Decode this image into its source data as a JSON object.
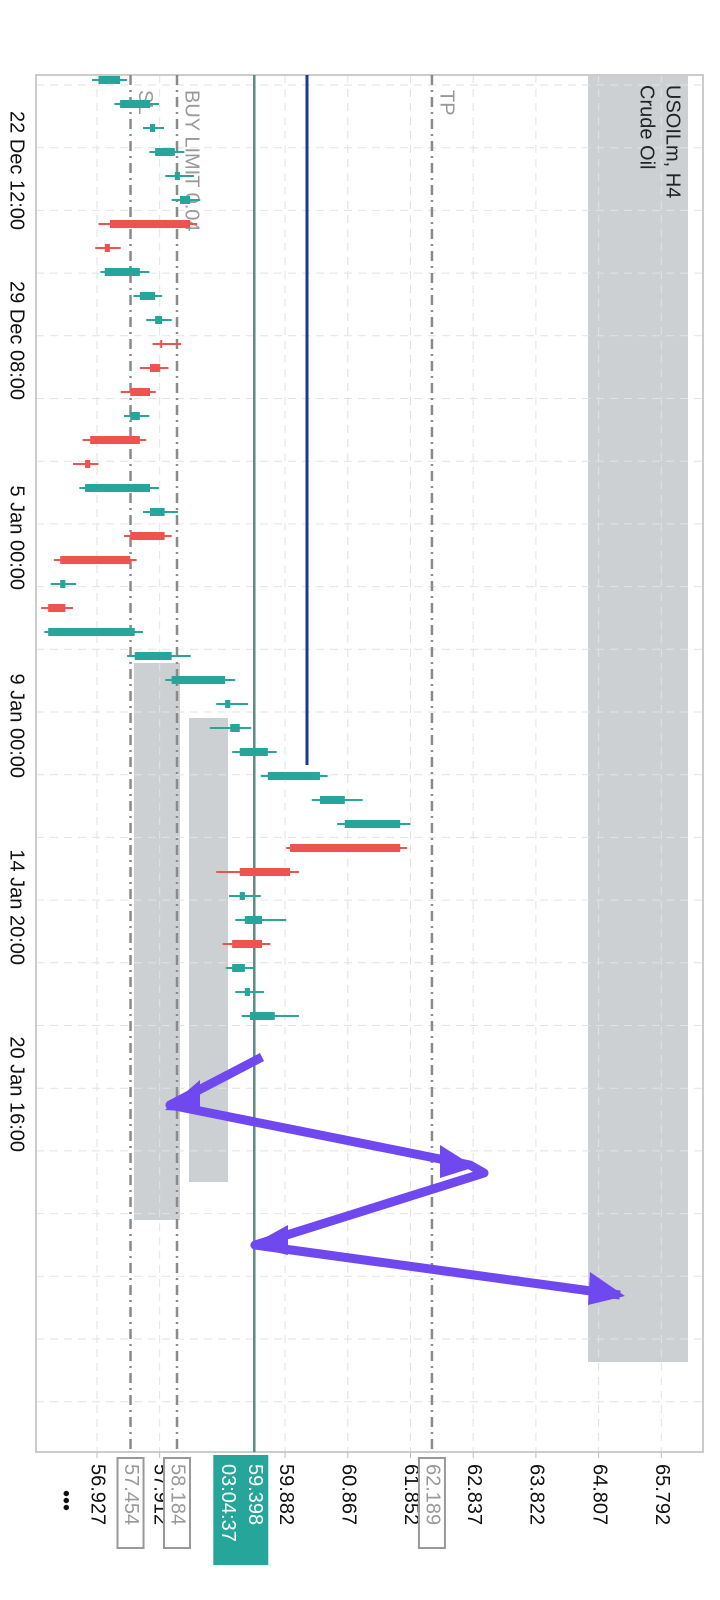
{
  "symbol": "USOILm, H4",
  "description": "Crude Oil",
  "chart_data": {
    "type": "candlestick",
    "up_color": "#26a69a",
    "down_color": "#ef5350",
    "grid": true,
    "xlim": [
      55.969,
      66.447
    ],
    "xticks": [
      56.927,
      57.912,
      59.882,
      60.867,
      61.852,
      62.837,
      63.822,
      64.807,
      65.792
    ],
    "time_labels": [
      "22 Dec 12:00",
      "29 Dec 08:00",
      "5 Jan 00:00",
      "9 Jan 00:00",
      "14 Jan 20:00",
      "20 Jan 16:00"
    ],
    "candles": [
      {
        "o": 56.95,
        "h": 57.4,
        "l": 56.85,
        "c": 57.29
      },
      {
        "o": 57.29,
        "h": 57.9,
        "l": 57.2,
        "c": 57.76
      },
      {
        "o": 57.76,
        "h": 57.98,
        "l": 57.65,
        "c": 57.84
      },
      {
        "o": 57.84,
        "h": 58.3,
        "l": 57.75,
        "c": 58.15
      },
      {
        "o": 58.15,
        "h": 58.45,
        "l": 58.0,
        "c": 58.23
      },
      {
        "o": 58.23,
        "h": 58.55,
        "l": 58.1,
        "c": 58.39
      },
      {
        "o": 58.39,
        "h": 58.5,
        "l": 56.95,
        "c": 57.13
      },
      {
        "o": 57.13,
        "h": 57.3,
        "l": 56.9,
        "c": 57.05
      },
      {
        "o": 57.05,
        "h": 57.75,
        "l": 56.98,
        "c": 57.6
      },
      {
        "o": 57.6,
        "h": 57.95,
        "l": 57.5,
        "c": 57.84
      },
      {
        "o": 57.84,
        "h": 58.1,
        "l": 57.7,
        "c": 57.95
      },
      {
        "o": 57.95,
        "h": 58.25,
        "l": 57.8,
        "c": 57.92
      },
      {
        "o": 57.92,
        "h": 58.05,
        "l": 57.6,
        "c": 57.76
      },
      {
        "o": 57.76,
        "h": 57.85,
        "l": 57.3,
        "c": 57.45
      },
      {
        "o": 57.45,
        "h": 57.75,
        "l": 57.35,
        "c": 57.6
      },
      {
        "o": 57.6,
        "h": 57.7,
        "l": 56.7,
        "c": 56.82
      },
      {
        "o": 56.82,
        "h": 56.95,
        "l": 56.55,
        "c": 56.74
      },
      {
        "o": 56.74,
        "h": 57.9,
        "l": 56.65,
        "c": 57.76
      },
      {
        "o": 57.76,
        "h": 58.2,
        "l": 57.65,
        "c": 57.99
      },
      {
        "o": 57.99,
        "h": 58.1,
        "l": 57.35,
        "c": 57.45
      },
      {
        "o": 57.45,
        "h": 57.55,
        "l": 56.25,
        "c": 56.35
      },
      {
        "o": 56.35,
        "h": 56.6,
        "l": 56.2,
        "c": 56.43
      },
      {
        "o": 56.43,
        "h": 56.55,
        "l": 56.05,
        "c": 56.16
      },
      {
        "o": 56.16,
        "h": 57.65,
        "l": 56.1,
        "c": 57.52
      },
      {
        "o": 57.52,
        "h": 58.4,
        "l": 57.4,
        "c": 58.1
      },
      {
        "o": 58.1,
        "h": 59.1,
        "l": 58.0,
        "c": 58.94
      },
      {
        "o": 58.94,
        "h": 59.3,
        "l": 58.8,
        "c": 59.02
      },
      {
        "o": 59.02,
        "h": 59.35,
        "l": 58.7,
        "c": 59.17
      },
      {
        "o": 59.17,
        "h": 59.75,
        "l": 59.05,
        "c": 59.61
      },
      {
        "o": 59.61,
        "h": 60.55,
        "l": 59.5,
        "c": 60.43
      },
      {
        "o": 60.43,
        "h": 61.1,
        "l": 60.3,
        "c": 60.82
      },
      {
        "o": 60.82,
        "h": 61.85,
        "l": 60.7,
        "c": 61.69
      },
      {
        "o": 61.69,
        "h": 61.8,
        "l": 59.9,
        "c": 59.96
      },
      {
        "o": 59.96,
        "h": 60.1,
        "l": 58.8,
        "c": 59.17
      },
      {
        "o": 59.17,
        "h": 59.5,
        "l": 59.0,
        "c": 59.25
      },
      {
        "o": 59.25,
        "h": 59.9,
        "l": 59.1,
        "c": 59.52
      },
      {
        "o": 59.52,
        "h": 59.65,
        "l": 58.9,
        "c": 59.05
      },
      {
        "o": 59.05,
        "h": 59.4,
        "l": 58.95,
        "c": 59.25
      },
      {
        "o": 59.25,
        "h": 59.55,
        "l": 59.1,
        "c": 59.33
      },
      {
        "o": 59.33,
        "h": 60.1,
        "l": 59.2,
        "c": 59.72
      }
    ]
  },
  "levels": [
    {
      "label": "SL",
      "price": 57.454
    },
    {
      "label": "BUY LIMIT 0.04",
      "price": 58.184
    },
    {
      "label": "TP",
      "price": 62.189
    }
  ],
  "current": {
    "price": 59.398,
    "countdown": "03:04:37"
  }
}
